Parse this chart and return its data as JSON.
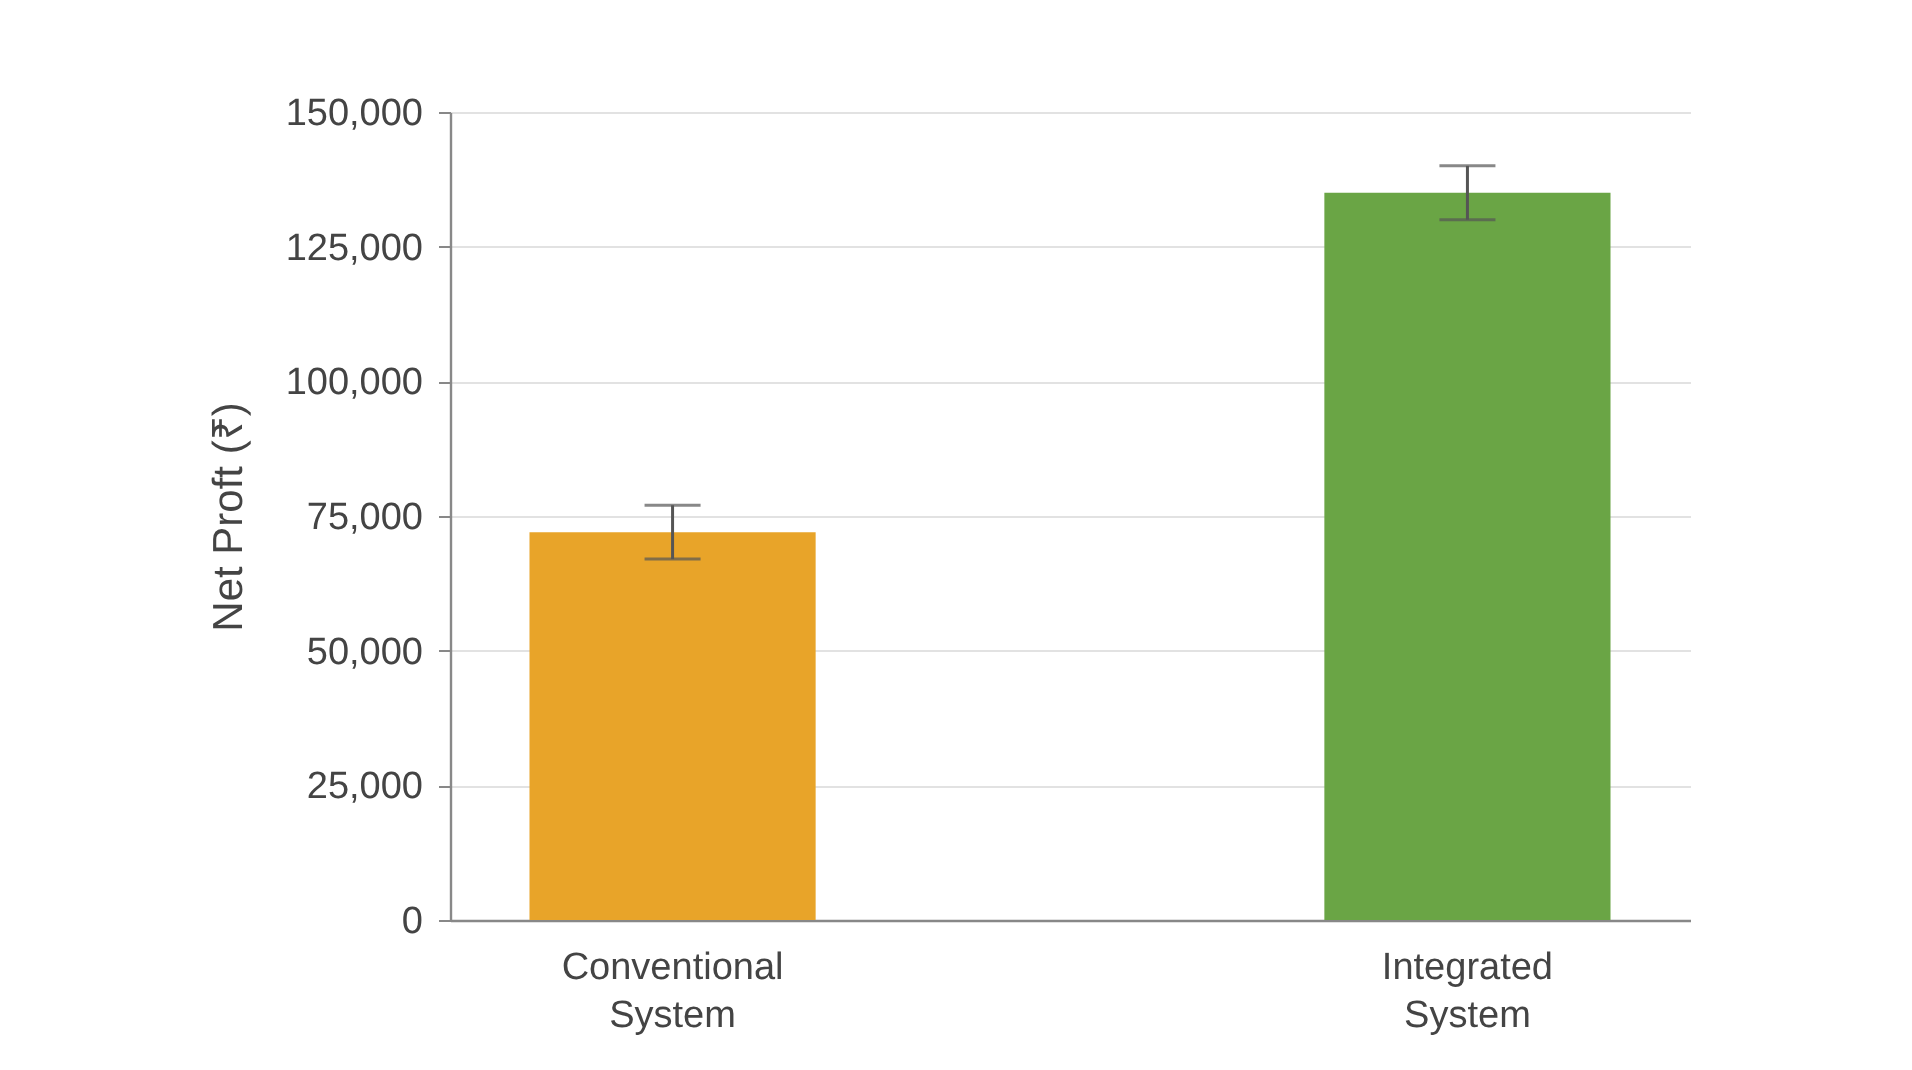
{
  "chart_data": {
    "type": "bar",
    "ylabel": "Net Proft (₹)",
    "categories": [
      "Conventional System",
      "Integrated System"
    ],
    "values": [
      72000,
      135000
    ],
    "errors": [
      5000,
      5000
    ],
    "colors": [
      "#e8a429",
      "#6aa545"
    ],
    "ylim": [
      0,
      150000
    ],
    "yticks": [
      0,
      {
        "value": 25000,
        "label": "25,000"
      },
      {
        "value": 50000,
        "label": "50,000"
      },
      {
        "value": 75000,
        "label": "75,000"
      },
      {
        "value": 100000,
        "label": "100,000"
      },
      {
        "value": 125000,
        "label": "125,000"
      },
      {
        "value": 150000,
        "label": "150,000"
      }
    ],
    "grid": "y"
  }
}
